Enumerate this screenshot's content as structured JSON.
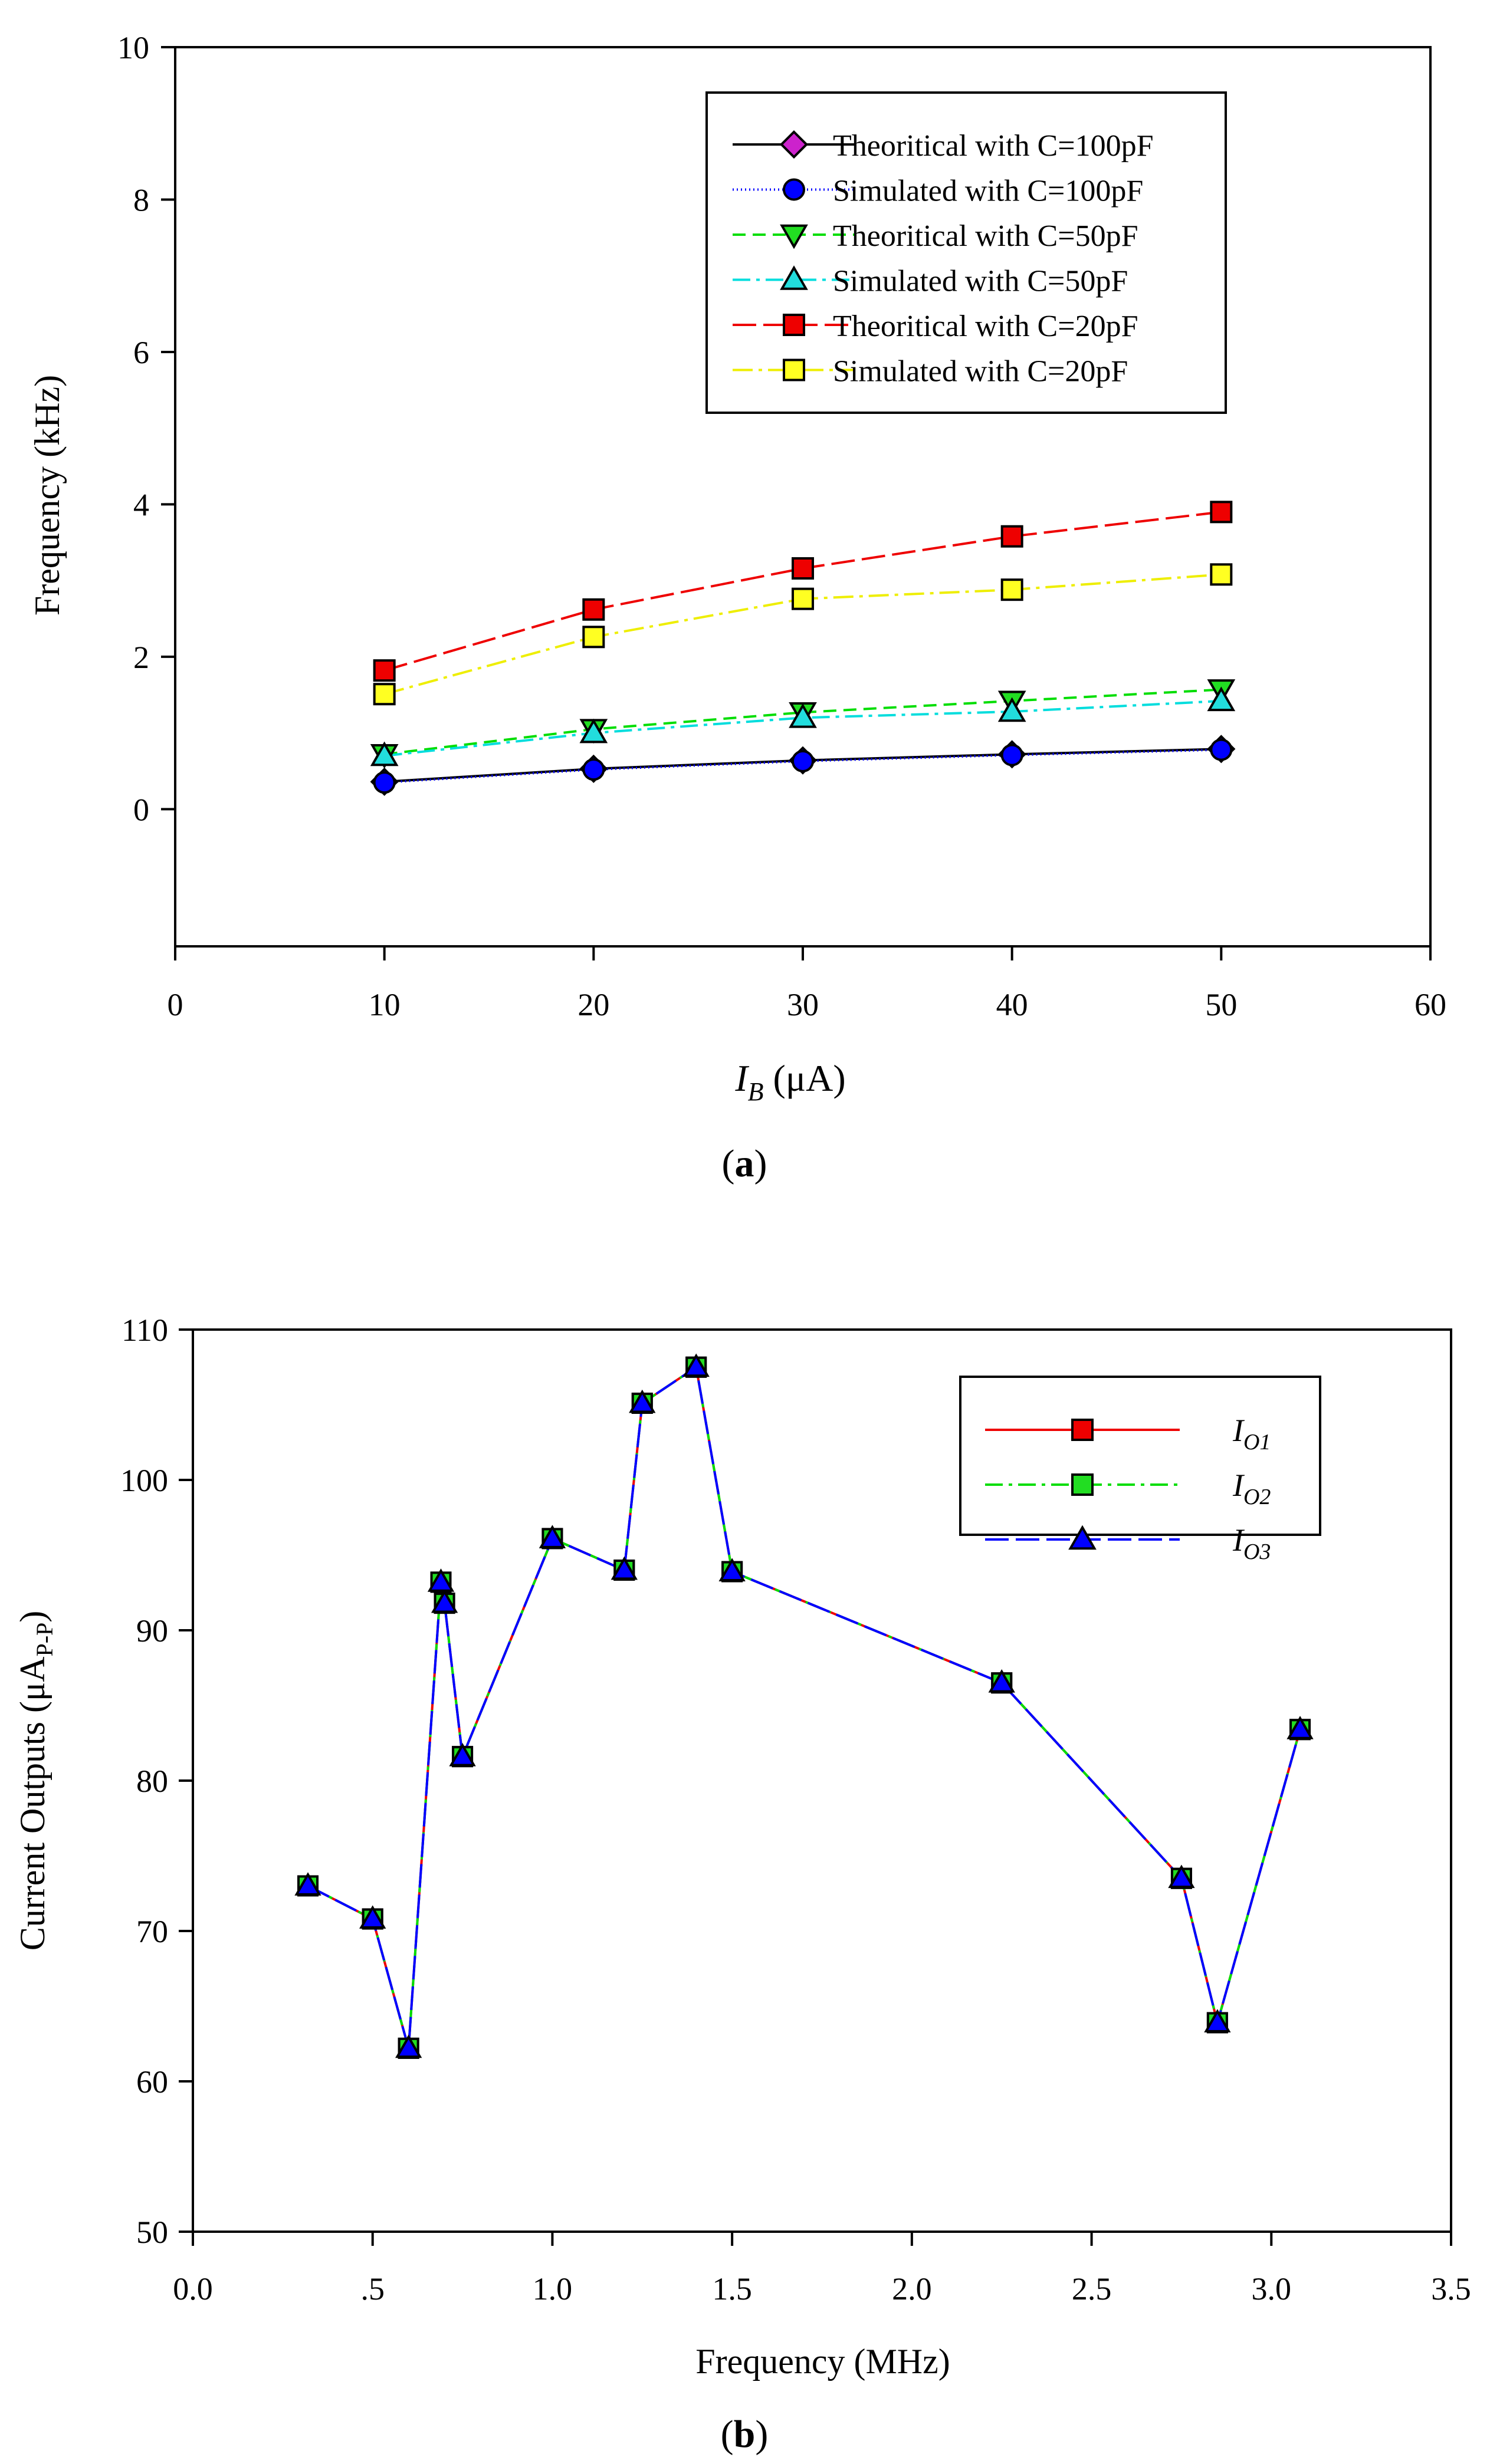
{
  "chart_data": [
    {
      "type": "line",
      "panel_label": "a",
      "xlabel": "I",
      "xlabel_sub": "B",
      "xlabel_unit": " (μA)",
      "ylabel": "Frequency (kHz)",
      "xlim": [
        0,
        60
      ],
      "ylim": [
        -1.8,
        10
      ],
      "xticks": [
        0,
        10,
        20,
        30,
        40,
        50,
        60
      ],
      "xtick_labels": [
        "0",
        "10",
        "20",
        "30",
        "40",
        "50",
        "60"
      ],
      "yticks": [
        0,
        2,
        4,
        6,
        8,
        10
      ],
      "ytick_labels": [
        "0",
        "2",
        "4",
        "6",
        "8",
        "10"
      ],
      "legend_position": "top-right",
      "x": [
        10,
        20,
        30,
        40,
        50
      ],
      "series": [
        {
          "name": "Theoritical with C=100pF",
          "values": [
            0.36,
            0.53,
            0.64,
            0.72,
            0.79
          ],
          "color": "#000000",
          "marker": "diamond",
          "marker_fill": "#0000ff",
          "legend_marker_fill": "#cc22cc",
          "dash": ""
        },
        {
          "name": "Simulated with C=100pF",
          "values": [
            0.35,
            0.52,
            0.63,
            0.71,
            0.78
          ],
          "color": "#0000ff",
          "marker": "circle",
          "marker_fill": "#0000ff",
          "legend_marker_fill": "#0000ff",
          "dash": "2,5"
        },
        {
          "name": "Theoritical with C=50pF",
          "values": [
            0.72,
            1.05,
            1.27,
            1.42,
            1.57
          ],
          "color": "#00dd00",
          "marker": "triangle-down",
          "marker_fill": "#22dd22",
          "legend_marker_fill": "#22dd22",
          "dash": "22,12"
        },
        {
          "name": "Simulated with C=50pF",
          "values": [
            0.7,
            1.0,
            1.2,
            1.28,
            1.42
          ],
          "color": "#00dddd",
          "marker": "triangle-up",
          "marker_fill": "#22dddd",
          "legend_marker_fill": "#22dddd",
          "dash": "30,10,6,10"
        },
        {
          "name": "Theoritical with C=20pF",
          "values": [
            1.82,
            2.62,
            3.16,
            3.58,
            3.9
          ],
          "color": "#ee0000",
          "marker": "square",
          "marker_fill": "#ee0000",
          "legend_marker_fill": "#ee0000",
          "dash": "40,12"
        },
        {
          "name": "Simulated with C=20pF",
          "values": [
            1.51,
            2.26,
            2.76,
            2.88,
            3.08
          ],
          "color": "#eeee00",
          "marker": "square",
          "marker_fill": "#ffff22",
          "legend_marker_fill": "#ffff22",
          "dash": "34,10,6,10"
        }
      ]
    },
    {
      "type": "line",
      "panel_label": "b",
      "xlabel": "Frequency (MHz)",
      "ylabel": "Current Outputs  (μA",
      "ylabel_sub": "P-P",
      "ylabel_close": ")",
      "xlim": [
        0,
        3.5
      ],
      "ylim": [
        50,
        110
      ],
      "xticks": [
        0,
        0.5,
        1.0,
        1.5,
        2.0,
        2.5,
        3.0,
        3.5
      ],
      "xtick_labels": [
        "0.0",
        ".5",
        "1.0",
        "1.5",
        "2.0",
        "2.5",
        "3.0",
        "3.5"
      ],
      "yticks": [
        50,
        60,
        70,
        80,
        90,
        100,
        110
      ],
      "ytick_labels": [
        "50",
        "60",
        "70",
        "80",
        "90",
        "100",
        "110"
      ],
      "legend_position": "top-right",
      "x": [
        0.32,
        0.5,
        0.6,
        0.69,
        0.7,
        0.75,
        1.0,
        1.2,
        1.25,
        1.4,
        1.5,
        2.25,
        2.75,
        2.85,
        3.08
      ],
      "series": [
        {
          "name": "I",
          "sub": "O1",
          "values": [
            73.0,
            70.8,
            62.2,
            93.2,
            91.8,
            81.6,
            96.1,
            94.0,
            105.1,
            107.5,
            93.9,
            86.5,
            73.5,
            63.9,
            83.4
          ],
          "color": "#ee0000",
          "marker": "square",
          "marker_fill": "#ee0000",
          "dash": ""
        },
        {
          "name": "I",
          "sub": "O2",
          "values": [
            73.0,
            70.8,
            62.2,
            93.2,
            91.8,
            81.6,
            96.1,
            94.0,
            105.1,
            107.5,
            93.9,
            86.5,
            73.5,
            63.9,
            83.4
          ],
          "color": "#00dd00",
          "marker": "square",
          "marker_fill": "#22dd22",
          "dash": "30,10,6,10"
        },
        {
          "name": "I",
          "sub": "O3",
          "values": [
            73.0,
            70.8,
            62.2,
            93.2,
            91.8,
            81.6,
            96.1,
            94.0,
            105.1,
            107.5,
            93.9,
            86.5,
            73.5,
            63.9,
            83.4
          ],
          "color": "#0000ff",
          "marker": "triangle-up",
          "marker_fill": "#0000ff",
          "dash": "40,12"
        }
      ]
    }
  ]
}
